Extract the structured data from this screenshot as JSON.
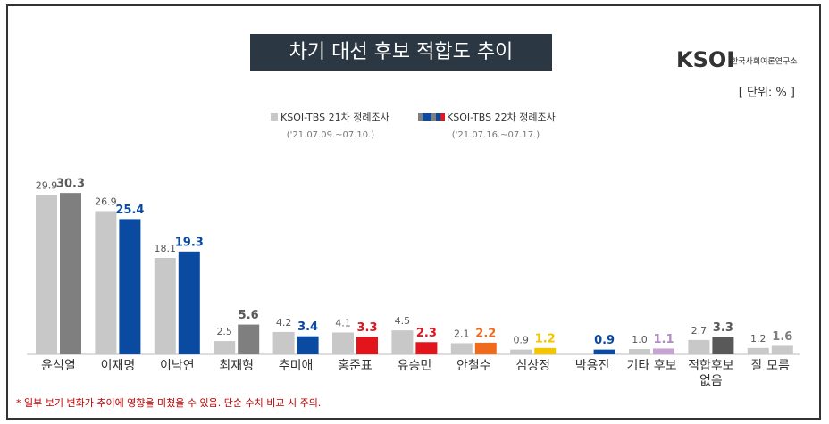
{
  "chart_data": {
    "type": "bar",
    "title": "차기 대선 후보 적합도 추이",
    "unit": "[ 단위: % ]",
    "logo": {
      "mark": "KSOI",
      "name": "한국사회여론연구소"
    },
    "footnote": "* 일부 보기 변화가 추이에 영향을 미쳤을 수 있음. 단순 수치 비교 시 주의.",
    "categories": [
      "윤석열",
      "이재명",
      "이낙연",
      "최재형",
      "추미애",
      "홍준표",
      "유승민",
      "안철수",
      "심상정",
      "박용진",
      "기타 후보",
      "적합후보\n없음",
      "잘 모름"
    ],
    "series": [
      {
        "name": "KSOI-TBS 21차 정례조사",
        "period": "('21.07.09.~07.10.)",
        "color": "#c8c8c8",
        "label_color": "#555555",
        "values": [
          29.9,
          26.9,
          18.1,
          2.5,
          4.2,
          4.1,
          4.5,
          2.1,
          0.9,
          null,
          1.0,
          2.7,
          1.2
        ],
        "value_labels": [
          "29.9",
          "26.9",
          "18.1",
          "2.5",
          "4.2",
          "4.1",
          "4.5",
          "2.1",
          "0.9",
          null,
          "1.0",
          "2.7",
          "1.2"
        ]
      },
      {
        "name": "KSOI-TBS 22차 정례조사",
        "period": "('21.07.16.~07.17.)",
        "colors": [
          "#7f7f7f",
          "#0a4aa0",
          "#0a4aa0",
          "#7f7f7f",
          "#0a4aa0",
          "#e2141c",
          "#e2141c",
          "#f06a1e",
          "#f5c400",
          "#0a4aa0",
          "#c7a3d3",
          "#595959",
          "#c8c8c8"
        ],
        "label_colors": [
          "#595959",
          "#0a4aa0",
          "#0a4aa0",
          "#595959",
          "#0a4aa0",
          "#e2141c",
          "#e2141c",
          "#f06a1e",
          "#f5c400",
          "#0a4aa0",
          "#b08cc0",
          "#595959",
          "#7f7f7f"
        ],
        "values": [
          30.3,
          25.4,
          19.3,
          5.6,
          3.4,
          3.3,
          2.3,
          2.2,
          1.2,
          0.9,
          1.1,
          3.3,
          1.6
        ]
      }
    ],
    "ylim": [
      0,
      32
    ]
  }
}
